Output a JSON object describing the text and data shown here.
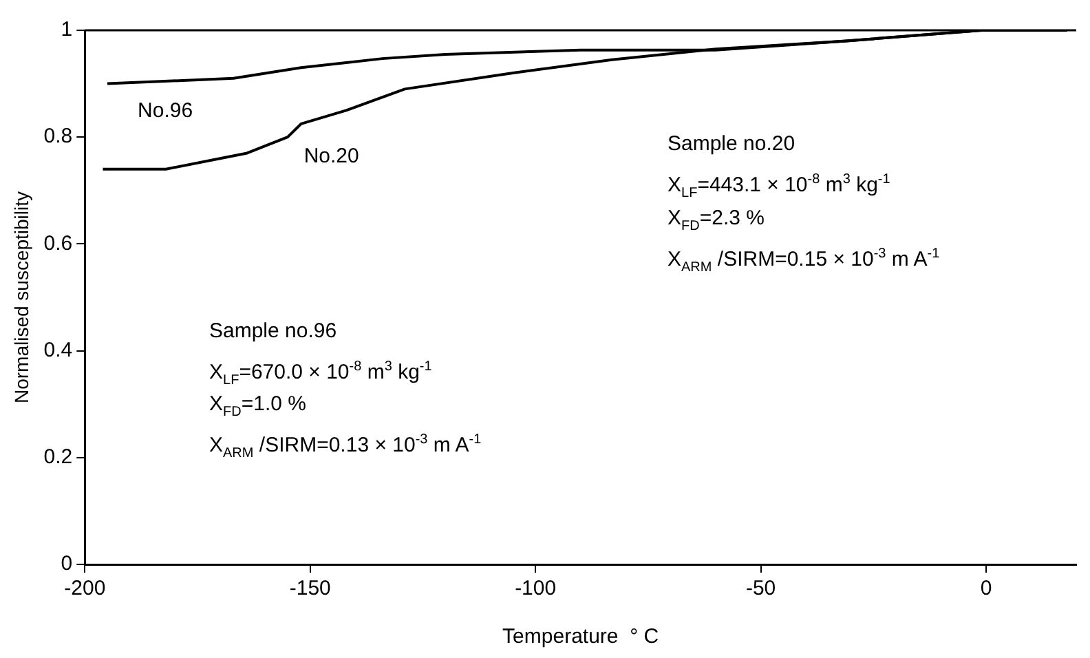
{
  "chart_data": {
    "type": "line",
    "xlabel": "Temperature  ° C",
    "ylabel": "Normalised susceptibility",
    "xlim": [
      -200,
      20
    ],
    "xticks": [
      -200,
      -150,
      -100,
      -50,
      0
    ],
    "ylim": [
      0,
      1
    ],
    "yticks": [
      0,
      0.2,
      0.4,
      0.6,
      0.8,
      1
    ],
    "grid": false,
    "legend": false,
    "marker": "none",
    "line_style": "solid",
    "series": [
      {
        "name": "No.96",
        "color": "#000000",
        "x": [
          -195,
          -167,
          -152,
          -134,
          -120,
          -90,
          -60,
          -31,
          -1,
          18
        ],
        "values": [
          0.9,
          0.91,
          0.93,
          0.947,
          0.955,
          0.963,
          0.963,
          0.98,
          1.0,
          1.0
        ]
      },
      {
        "name": "No.20",
        "color": "#000000",
        "x": [
          -196,
          -182,
          -170,
          -164,
          -155,
          -152,
          -142,
          -129,
          -105,
          -83,
          -60,
          -31,
          -1,
          18
        ],
        "values": [
          0.74,
          0.74,
          0.76,
          0.77,
          0.8,
          0.825,
          0.85,
          0.89,
          0.92,
          0.945,
          0.965,
          0.98,
          1.0,
          1.0
        ]
      }
    ],
    "annotations": [
      "Sample no.20",
      "X$_{LF}$=443.1 × 10$^{-8}$ m$^{3}$ kg$^{-1}$",
      "X$_{FD}$=2.3 %",
      "X$_{ARM}$ /SIRM=0.15 × 10$^{-3}$ m A$^{-1}$",
      "Sample no.96",
      "X$_{LF}$=670.0 × 10$^{-8}$ m$^{3}$ kg$^{-1}$",
      "X$_{FD}$=1.0 %",
      "X$_{ARM}$ /SIRM=0.13 × 10$^{-3}$ m A$^{-1}$"
    ]
  }
}
